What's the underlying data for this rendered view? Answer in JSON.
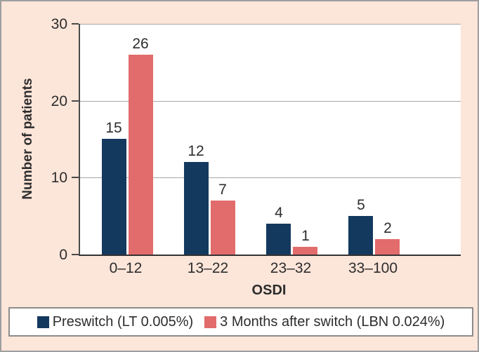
{
  "chart_data": {
    "type": "bar",
    "title": "",
    "xlabel": "OSDI",
    "ylabel": "Number of patients",
    "categories": [
      "0–12",
      "13–22",
      "23–32",
      "33–100"
    ],
    "series": [
      {
        "name": "Preswitch (LT 0.005%)",
        "color": "#14395f",
        "values": [
          15,
          12,
          4,
          5
        ]
      },
      {
        "name": "3 Months after switch (LBN 0.024%)",
        "color": "#e26c6c",
        "values": [
          26,
          7,
          1,
          2
        ]
      }
    ],
    "ylim": [
      0,
      30
    ],
    "yticks": [
      0,
      10,
      20,
      30
    ],
    "grid": true,
    "show_value_labels": true,
    "legend_position": "bottom",
    "colors": {
      "background": "#fce5d9",
      "plot_background": "#ffffff",
      "gridline": "#a6a6a6",
      "axis": "#4a4a4a",
      "text": "#2d2d2d",
      "frame_border": "#9e9e9e",
      "legend_border": "#8c8c8c"
    }
  }
}
